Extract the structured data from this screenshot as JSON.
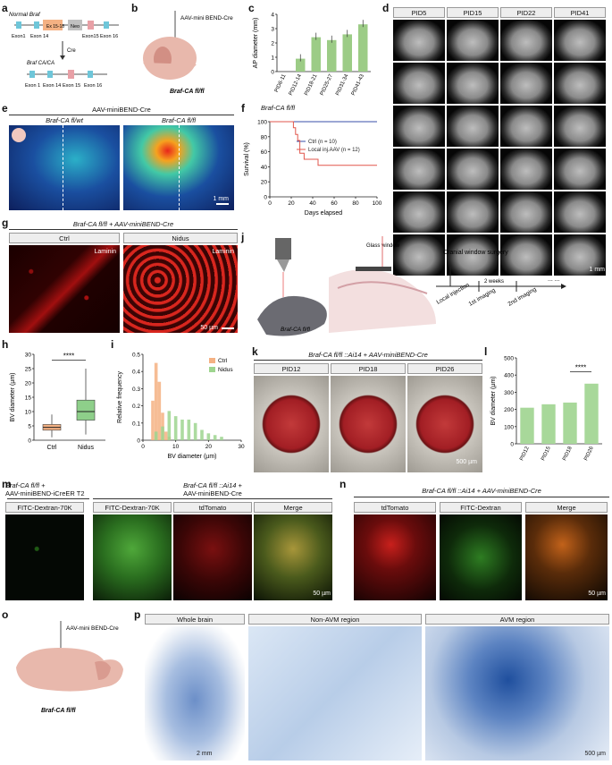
{
  "panels": {
    "a": {
      "label": "a",
      "normal_label": "Normal Braf",
      "exon1": "Exon1",
      "exon14": "Exon 14",
      "ex1518": "Ex 15-18",
      "neo": "Neo",
      "exon15": "Exon15",
      "exon16": "Exon 16",
      "cre": "Cre",
      "ca_label": "Braf CA/CA",
      "exon1b": "Exon 1",
      "exon14b": "Exon 14",
      "exon15b": "Exon 15",
      "exon16b": "Exon 16"
    },
    "b": {
      "label": "b",
      "virus": "AAV-mini BEND-Cre",
      "mouse": "Braf-CA fl/fl"
    },
    "c": {
      "label": "c"
    },
    "d": {
      "label": "d",
      "cols": [
        "PID5",
        "PID15",
        "PID22",
        "PID41"
      ],
      "scale": "1 mm"
    },
    "e": {
      "label": "e",
      "title": "AAV-miniBEND-Cre",
      "left": "Braf-CA fl/wt",
      "right": "Braf-CA fl/fl",
      "scale": "1 mm"
    },
    "f": {
      "label": "f",
      "title": "Braf-CA fl/fl"
    },
    "g": {
      "label": "g",
      "title": "Braf-CA fl/fl + AAV-miniBEND-Cre",
      "left": "Ctrl",
      "right": "Nidus",
      "stain_l": "Laminin",
      "stain_r": "Laminin",
      "scale": "50 µm"
    },
    "j": {
      "label": "j",
      "window": "Glass window",
      "mouse": "Braf-CA fl/fl",
      "surgery": "Cranial window surgery",
      "weeks": "2 weeks",
      "t1": "Local injection",
      "t2": "1st imaging",
      "t3": "2nd imaging",
      "dots": "... ..."
    },
    "h": {
      "label": "h",
      "sig": "****"
    },
    "i": {
      "label": "i"
    },
    "k": {
      "label": "k",
      "title": "Braf-CA fl/fl ::Ai14 + AAV-miniBEND-Cre",
      "cols": [
        "PID12",
        "PID18",
        "PID26"
      ],
      "scale": "500 µm"
    },
    "l": {
      "label": "l",
      "sig": "****"
    },
    "m": {
      "label": "m",
      "left_title1": "Braf-CA fl/fl +",
      "left_title2": "AAV-miniBEND-iCreER T2",
      "right_title1": "Braf-CA fl/fl ::Ai14 +",
      "right_title2": "AAV-miniBEND-Cre",
      "cols": [
        "FITC-Dextran-70K",
        "FITC-Dextran-70K",
        "tdTomato",
        "Merge"
      ],
      "scale": "50 µm"
    },
    "n": {
      "label": "n",
      "title": "Braf-CA fl/fl ::Ai14 + AAV-miniBEND-Cre",
      "cols": [
        "tdTomato",
        "FITC-Dextran",
        "Merge"
      ],
      "scale": "50 µm"
    },
    "o": {
      "label": "o",
      "virus": "AAV-mini BEND-Cre",
      "mouse": "Braf-CA fl/fl"
    },
    "p": {
      "label": "p",
      "cols": [
        "Whole brain",
        "Non-AVM region",
        "AVM region"
      ],
      "scale_l": "2 mm",
      "scale_r": "500 µm"
    }
  },
  "chart_data": [
    {
      "id": "c",
      "type": "bar",
      "categories": [
        "PID6-11",
        "PID12-14",
        "PID18-21",
        "PID25-27",
        "PID31-34",
        "PID41-43"
      ],
      "values": [
        0,
        0.9,
        2.4,
        2.2,
        2.6,
        3.3
      ],
      "ylabel": "AP diameter (mm)",
      "ylim": [
        0,
        4
      ],
      "yticks": [
        0,
        1,
        2,
        3,
        4
      ],
      "color": "#9ccc86"
    },
    {
      "id": "f",
      "type": "line",
      "xlabel": "Days elapsed",
      "ylabel": "Survival (%)",
      "xlim": [
        0,
        100
      ],
      "ylim": [
        0,
        100
      ],
      "xticks": [
        0,
        20,
        40,
        60,
        80,
        100
      ],
      "yticks": [
        0,
        20,
        40,
        60,
        80,
        100
      ],
      "series": [
        {
          "name": "Ctrl (n = 10)",
          "color": "#3a4fa8",
          "points": [
            [
              0,
              100
            ],
            [
              100,
              100
            ]
          ]
        },
        {
          "name": "Local inj.AAV (n = 12)",
          "color": "#e2574c",
          "points": [
            [
              0,
              100
            ],
            [
              22,
              100
            ],
            [
              22,
              92
            ],
            [
              24,
              92
            ],
            [
              24,
              83
            ],
            [
              26,
              83
            ],
            [
              26,
              75
            ],
            [
              28,
              75
            ],
            [
              28,
              58
            ],
            [
              32,
              58
            ],
            [
              32,
              50
            ],
            [
              45,
              50
            ],
            [
              45,
              42
            ],
            [
              100,
              42
            ]
          ]
        }
      ]
    },
    {
      "id": "h",
      "type": "box",
      "categories": [
        "Ctrl",
        "Nidus"
      ],
      "ylabel": "BV diameter (µm)",
      "ylim": [
        0,
        30
      ],
      "yticks": [
        0,
        5,
        10,
        15,
        20,
        25,
        30
      ],
      "boxes": [
        {
          "name": "Ctrl",
          "min": 1,
          "q1": 3.5,
          "median": 4.5,
          "q3": 5.5,
          "max": 9,
          "color": "#f4b183"
        },
        {
          "name": "Nidus",
          "min": 2,
          "q1": 7,
          "median": 10,
          "q3": 14,
          "max": 25,
          "color": "#8ecf8a"
        }
      ]
    },
    {
      "id": "i",
      "type": "bar",
      "xlabel": "BV diameter (µm)",
      "ylabel": "Relative frequency",
      "xlim": [
        0,
        30
      ],
      "ylim": [
        0,
        0.5
      ],
      "xticks": [
        0,
        10,
        20,
        30
      ],
      "yticks": [
        0,
        0.1,
        0.2,
        0.3,
        0.4,
        0.5
      ],
      "series": [
        {
          "name": "Ctrl",
          "color": "#f4b183",
          "x": [
            3,
            4,
            5,
            6,
            7,
            8
          ],
          "values": [
            0.23,
            0.45,
            0.34,
            0.16,
            0.05,
            0.02
          ]
        },
        {
          "name": "Nidus",
          "color": "#9ed58f",
          "x": [
            4,
            6,
            8,
            10,
            12,
            14,
            16,
            18,
            20,
            22,
            24
          ],
          "values": [
            0.05,
            0.08,
            0.17,
            0.14,
            0.12,
            0.12,
            0.1,
            0.06,
            0.04,
            0.03,
            0.02
          ]
        }
      ]
    },
    {
      "id": "l",
      "type": "bar",
      "categories": [
        "PID12",
        "PID15",
        "PID18",
        "PID26"
      ],
      "values": [
        210,
        230,
        240,
        350
      ],
      "ylabel": "BV diameter (µm)",
      "ylim": [
        0,
        500
      ],
      "yticks": [
        0,
        100,
        200,
        300,
        400,
        500
      ],
      "color": "#a8d89a"
    }
  ]
}
